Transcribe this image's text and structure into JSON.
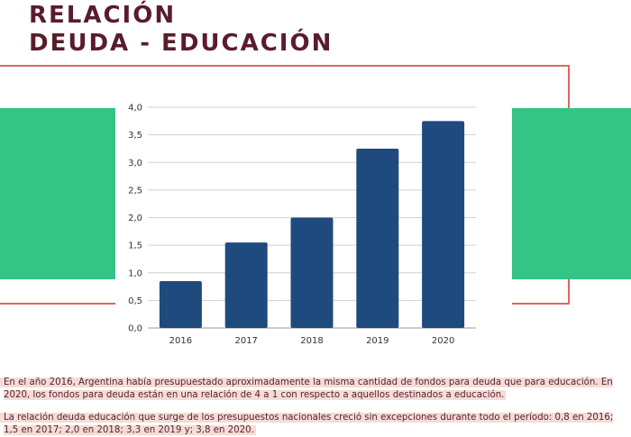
{
  "header": {
    "title_line1": "RELACIÓN",
    "title_line2": "DEUDA - EDUCACIÓN"
  },
  "colors": {
    "title": "#5a1c2c",
    "frame": "#e0665a",
    "green": "#33c486",
    "bar": "#1f4a7e",
    "text": "#5a1c2c"
  },
  "chart_data": {
    "type": "bar",
    "categories": [
      "2016",
      "2017",
      "2018",
      "2019",
      "2020"
    ],
    "values": [
      0.85,
      1.55,
      2.0,
      3.25,
      3.75
    ],
    "yticks": [
      "0,0",
      "0,5",
      "1,0",
      "1,5",
      "2,0",
      "2,5",
      "3,0",
      "3,5",
      "4,0"
    ],
    "ylim": [
      0,
      4
    ],
    "grid": true,
    "title": "",
    "xlabel": "",
    "ylabel": ""
  },
  "text": {
    "paragraph1": "En el año 2016, Argentina había presupuestado aproximadamente la misma cantidad de fondos para deuda que para educación. En 2020, los fondos para deuda están en una relación de 4 a 1 con respecto a aquellos destinados a educación.",
    "paragraph2": "La relación deuda educación que surge de los presupuestos nacionales creció sin excepciones durante todo el período: 0,8 en 2016; 1,5 en 2017; 2,0 en 2018; 3,3 en 2019 y; 3,8 en 2020."
  }
}
